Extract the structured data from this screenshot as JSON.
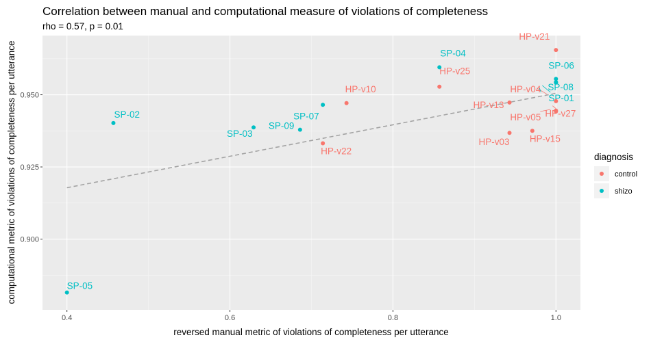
{
  "chart_data": {
    "type": "scatter",
    "title": "Correlation between manual and computational measure of violations of completeness",
    "subtitle": "rho = 0.57, p = 0.01",
    "xlabel": "reversed manual metric of violations of completeness per utterance",
    "ylabel": "computational metric of violations of completeness per utterance",
    "xlim": [
      0.37,
      1.03
    ],
    "ylim": [
      0.8755,
      0.9705
    ],
    "x_ticks": [
      0.4,
      0.6,
      0.8,
      1.0
    ],
    "x_tick_labels": [
      "0.4",
      "0.6",
      "0.8",
      "1.0"
    ],
    "y_ticks": [
      0.9,
      0.925,
      0.95
    ],
    "y_tick_labels": [
      "0.900",
      "0.925",
      "0.950"
    ],
    "grid": true,
    "legend": {
      "title": "diagnosis",
      "position": "right",
      "entries": [
        {
          "name": "control",
          "color": "#F8766D"
        },
        {
          "name": "shizo",
          "color": "#00BFC4"
        }
      ]
    },
    "trend_line": {
      "style": "dashed",
      "color": "#A3A3A3",
      "x": [
        0.4,
        1.0
      ],
      "y": [
        0.9178,
        0.9505
      ]
    },
    "series": [
      {
        "name": "control",
        "color": "#F8766D",
        "points": [
          {
            "label": "HP-v21",
            "x": 1.0,
            "y": 0.9655
          },
          {
            "label": "HP-v25",
            "x": 0.857,
            "y": 0.9528
          },
          {
            "label": "HP-v10",
            "x": 0.743,
            "y": 0.9471
          },
          {
            "label": "HP-v04",
            "x": 1.0,
            "y": 0.9478
          },
          {
            "label": "HP-v13",
            "x": 0.943,
            "y": 0.9473
          },
          {
            "label": "HP-v27",
            "x": 1.0,
            "y": 0.9445
          },
          {
            "label": "HP-v05",
            "x": 1.0,
            "y": 0.9442
          },
          {
            "label": "HP-v03",
            "x": 0.943,
            "y": 0.9368
          },
          {
            "label": "HP-v15",
            "x": 0.971,
            "y": 0.9375
          },
          {
            "label": "HP-v22",
            "x": 0.714,
            "y": 0.9332
          }
        ]
      },
      {
        "name": "shizo",
        "color": "#00BFC4",
        "points": [
          {
            "label": "SP-04",
            "x": 0.857,
            "y": 0.9595
          },
          {
            "label": "SP-06",
            "x": 1.0,
            "y": 0.9555
          },
          {
            "label": "SP-08",
            "x": 1.0,
            "y": 0.9542
          },
          {
            "label": "SP-01",
            "x": 1.0,
            "y": 0.9544
          },
          {
            "label": "SP-07",
            "x": 0.714,
            "y": 0.9465
          },
          {
            "label": "SP-02",
            "x": 0.457,
            "y": 0.9402
          },
          {
            "label": "SP-03",
            "x": 0.629,
            "y": 0.9387
          },
          {
            "label": "SP-09",
            "x": 0.686,
            "y": 0.9379
          },
          {
            "label": "SP-05",
            "x": 0.4,
            "y": 0.8815
          }
        ]
      }
    ]
  }
}
